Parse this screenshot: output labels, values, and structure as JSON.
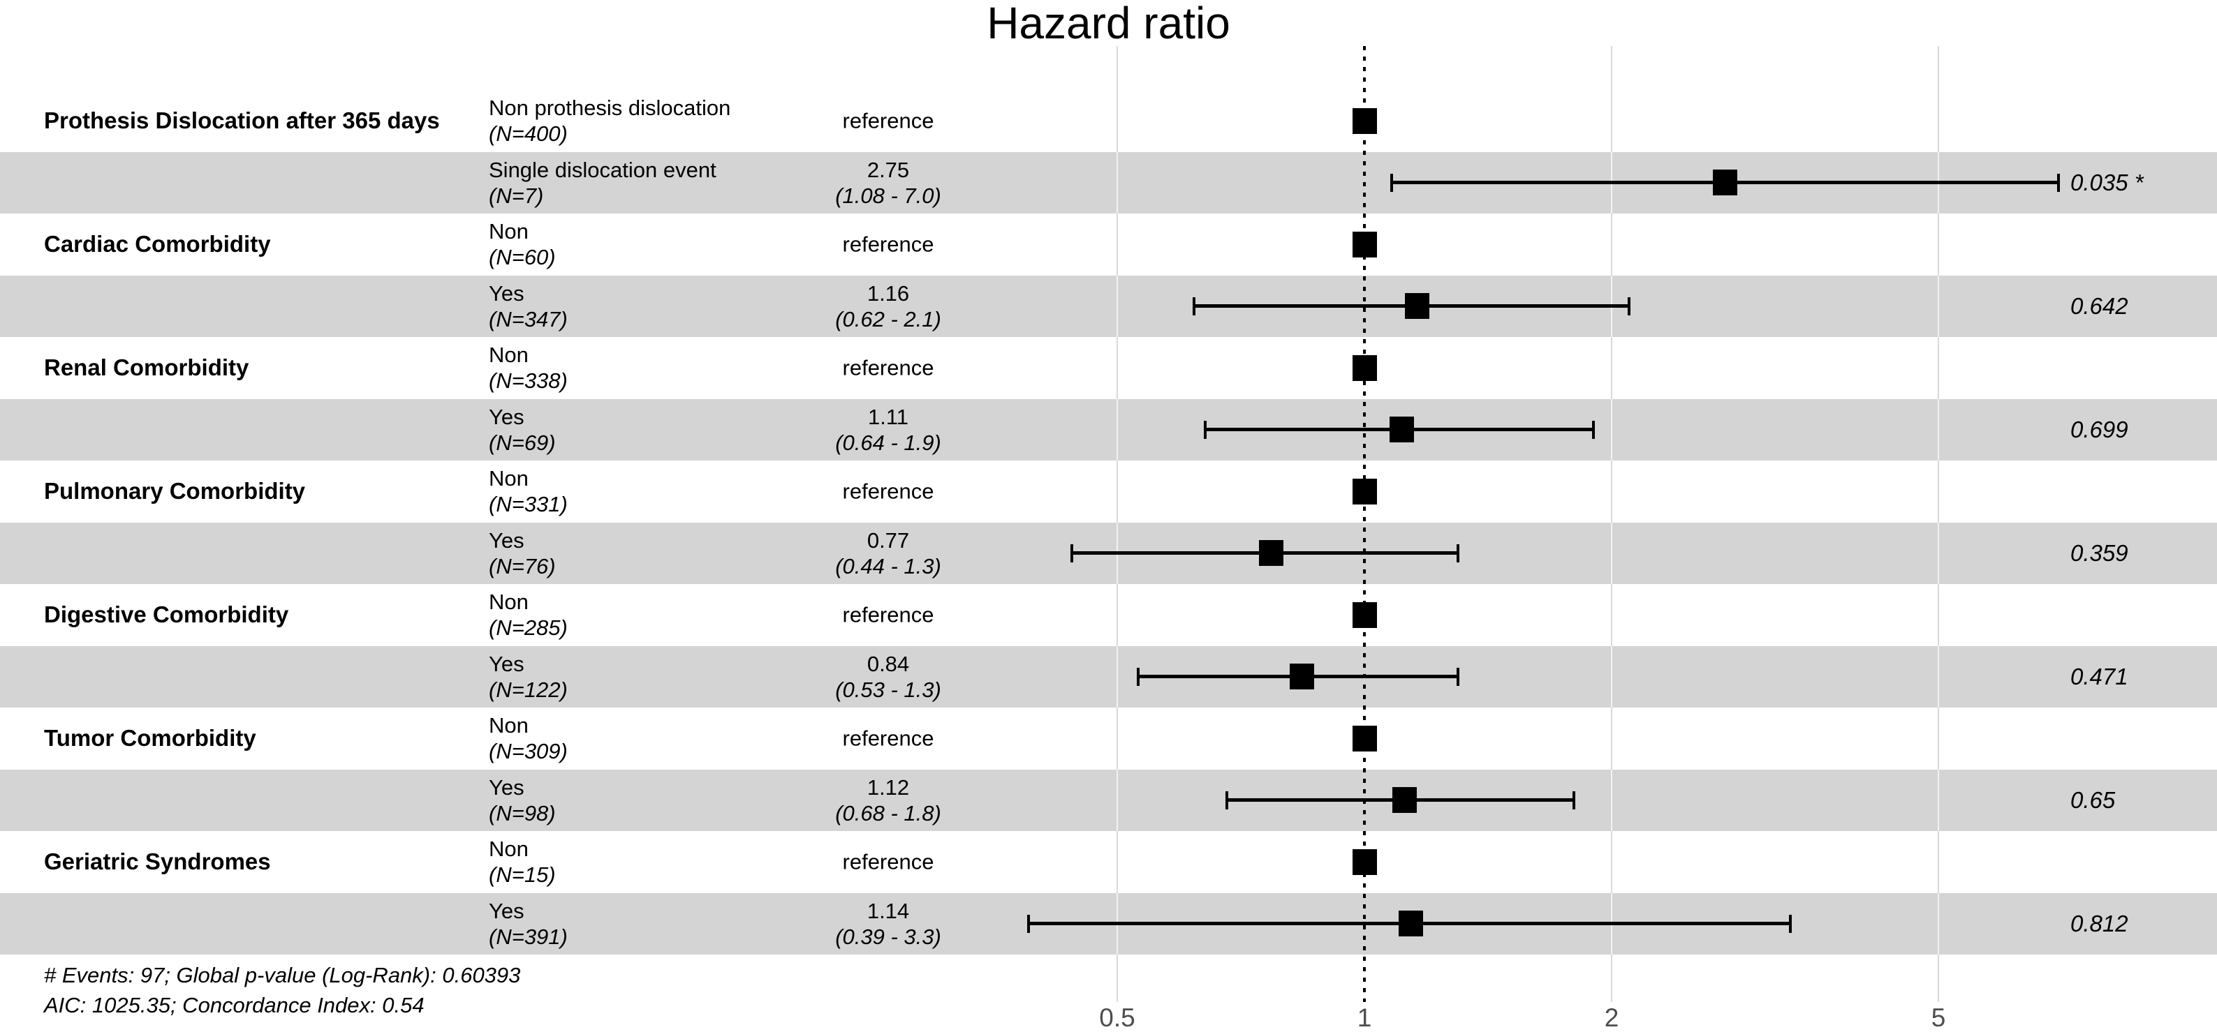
{
  "title": "Hazard ratio",
  "colors": {
    "band": "#d4d4d4",
    "grid_on_white": "#d9d9d9",
    "grid_on_band": "#f2f2f2",
    "marker": "#000000",
    "reference_line": "#000000",
    "tick_label": "#4d4d4d"
  },
  "chart_data": {
    "type": "forest",
    "title": "Hazard ratio",
    "x_scale": "log10",
    "x_ticks": [
      {
        "value": 0.5,
        "label": "0.5"
      },
      {
        "value": 1,
        "label": "1"
      },
      {
        "value": 2,
        "label": "2"
      },
      {
        "value": 5,
        "label": "5"
      }
    ],
    "reference_line_value": 1,
    "rows": [
      {
        "group": "Prothesis Dislocation after 365 days",
        "level": "Non prothesis dislocation",
        "n": "(N=400)",
        "estimate": "reference",
        "hr": 1,
        "shaded": false
      },
      {
        "level": "Single dislocation event",
        "n": "(N=7)",
        "estimate": "2.75",
        "ci": "(1.08 - 7.0)",
        "hr": 2.75,
        "lo": 1.08,
        "hi": 7.0,
        "p": "0.035 *",
        "shaded": true
      },
      {
        "group": "Cardiac Comorbidity",
        "level": "Non",
        "n": "(N=60)",
        "estimate": "reference",
        "hr": 1,
        "shaded": false
      },
      {
        "level": "Yes",
        "n": "(N=347)",
        "estimate": "1.16",
        "ci": "(0.62 - 2.1)",
        "hr": 1.16,
        "lo": 0.62,
        "hi": 2.1,
        "p": "0.642",
        "shaded": true
      },
      {
        "group": "Renal Comorbidity",
        "level": "Non",
        "n": "(N=338)",
        "estimate": "reference",
        "hr": 1,
        "shaded": false
      },
      {
        "level": "Yes",
        "n": "(N=69)",
        "estimate": "1.11",
        "ci": "(0.64 - 1.9)",
        "hr": 1.11,
        "lo": 0.64,
        "hi": 1.9,
        "p": "0.699",
        "shaded": true
      },
      {
        "group": "Pulmonary Comorbidity",
        "level": "Non",
        "n": "(N=331)",
        "estimate": "reference",
        "hr": 1,
        "shaded": false
      },
      {
        "level": "Yes",
        "n": "(N=76)",
        "estimate": "0.77",
        "ci": "(0.44 - 1.3)",
        "hr": 0.77,
        "lo": 0.44,
        "hi": 1.3,
        "p": "0.359",
        "shaded": true
      },
      {
        "group": "Digestive Comorbidity",
        "level": "Non",
        "n": "(N=285)",
        "estimate": "reference",
        "hr": 1,
        "shaded": false
      },
      {
        "level": "Yes",
        "n": "(N=122)",
        "estimate": "0.84",
        "ci": "(0.53 - 1.3)",
        "hr": 0.84,
        "lo": 0.53,
        "hi": 1.3,
        "p": "0.471",
        "shaded": true
      },
      {
        "group": "Tumor Comorbidity",
        "level": "Non",
        "n": "(N=309)",
        "estimate": "reference",
        "hr": 1,
        "shaded": false
      },
      {
        "level": "Yes",
        "n": "(N=98)",
        "estimate": "1.12",
        "ci": "(0.68 - 1.8)",
        "hr": 1.12,
        "lo": 0.68,
        "hi": 1.8,
        "p": "0.65",
        "shaded": true
      },
      {
        "group": "Geriatric Syndromes",
        "level": "Non",
        "n": "(N=15)",
        "estimate": "reference",
        "hr": 1,
        "shaded": false
      },
      {
        "level": "Yes",
        "n": "(N=391)",
        "estimate": "1.14",
        "ci": "(0.39 - 3.3)",
        "hr": 1.14,
        "lo": 0.39,
        "hi": 3.3,
        "p": "0.812",
        "shaded": true
      }
    ],
    "footnote1": "# Events: 97; Global p-value (Log-Rank): 0.60393",
    "footnote2": "AIC: 1025.35; Concordance Index: 0.54"
  }
}
